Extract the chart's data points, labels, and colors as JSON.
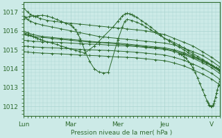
{
  "bg_color": "#cceae7",
  "plot_bg_color": "#cceae7",
  "line_color": "#2d6a2d",
  "grid_color": "#aad4d0",
  "tick_color": "#2d6a2d",
  "xlabel": "Pression niveau de la mer( hPa )",
  "ylim": [
    1011.5,
    1017.5
  ],
  "yticks": [
    1012,
    1013,
    1014,
    1015,
    1016,
    1017
  ],
  "xlim": [
    0,
    4.167
  ],
  "xtick_positions": [
    0.0,
    1.0,
    2.0,
    3.0,
    4.0
  ],
  "xtick_labels": [
    "Lun",
    "Mar",
    "Mer",
    "Jeu",
    "V"
  ],
  "linewidth": 0.7,
  "marker": "+",
  "markersize": 2.5,
  "markeredgewidth": 0.7,
  "series": [
    {
      "x": [
        0.0,
        0.08,
        0.15,
        0.25,
        0.35,
        0.5,
        0.65,
        0.8,
        1.0,
        1.2,
        1.4,
        1.6,
        1.8,
        2.0,
        2.2,
        2.4,
        2.6,
        2.8,
        3.0,
        3.2,
        3.4,
        3.6,
        3.8,
        4.0,
        4.167
      ],
      "y": [
        1017.2,
        1017.0,
        1016.85,
        1016.75,
        1016.65,
        1016.55,
        1016.5,
        1016.45,
        1016.4,
        1016.35,
        1016.3,
        1016.25,
        1016.2,
        1016.15,
        1016.1,
        1016.05,
        1016.0,
        1015.9,
        1015.8,
        1015.6,
        1015.4,
        1015.2,
        1014.9,
        1014.6,
        1014.3
      ]
    },
    {
      "x": [
        0.0,
        0.08,
        0.15,
        0.25,
        0.4,
        0.6,
        0.8,
        1.0,
        1.2,
        1.4,
        1.6,
        1.8,
        2.0,
        2.2,
        2.4,
        2.6,
        2.8,
        3.0,
        3.2,
        3.4,
        3.6,
        3.8,
        4.0,
        4.167
      ],
      "y": [
        1016.8,
        1016.6,
        1016.5,
        1016.4,
        1016.3,
        1016.2,
        1016.1,
        1016.0,
        1015.9,
        1015.8,
        1015.7,
        1015.65,
        1015.6,
        1015.55,
        1015.5,
        1015.45,
        1015.4,
        1015.35,
        1015.25,
        1015.1,
        1014.9,
        1014.7,
        1014.4,
        1014.1
      ]
    },
    {
      "x": [
        0.0,
        0.08,
        0.2,
        0.4,
        0.6,
        0.8,
        1.0,
        1.2,
        1.4,
        1.6,
        1.8,
        2.0,
        2.2,
        2.4,
        2.6,
        2.8,
        3.0,
        3.2,
        3.4,
        3.6,
        3.8,
        4.0,
        4.167
      ],
      "y": [
        1016.0,
        1015.9,
        1015.8,
        1015.7,
        1015.65,
        1015.6,
        1015.55,
        1015.5,
        1015.45,
        1015.4,
        1015.38,
        1015.35,
        1015.3,
        1015.25,
        1015.2,
        1015.15,
        1015.1,
        1015.0,
        1014.85,
        1014.65,
        1014.45,
        1014.2,
        1013.9
      ]
    },
    {
      "x": [
        0.0,
        0.08,
        0.2,
        0.4,
        0.6,
        0.8,
        1.0,
        1.2,
        1.4,
        1.6,
        1.8,
        2.0,
        2.2,
        2.4,
        2.6,
        2.8,
        3.0,
        3.2,
        3.4,
        3.6,
        3.8,
        4.0,
        4.167
      ],
      "y": [
        1015.8,
        1015.75,
        1015.7,
        1015.65,
        1015.6,
        1015.55,
        1015.5,
        1015.45,
        1015.4,
        1015.38,
        1015.35,
        1015.3,
        1015.25,
        1015.2,
        1015.15,
        1015.1,
        1015.05,
        1014.95,
        1014.8,
        1014.6,
        1014.4,
        1014.15,
        1013.85
      ]
    },
    {
      "x": [
        0.0,
        0.08,
        0.2,
        0.4,
        0.6,
        0.8,
        1.0,
        1.2,
        1.4,
        1.6,
        1.8,
        2.0,
        2.2,
        2.4,
        2.6,
        2.8,
        3.0,
        3.2,
        3.4,
        3.6,
        3.8,
        4.0,
        4.167
      ],
      "y": [
        1015.5,
        1015.48,
        1015.45,
        1015.42,
        1015.4,
        1015.38,
        1015.35,
        1015.32,
        1015.3,
        1015.28,
        1015.25,
        1015.22,
        1015.2,
        1015.17,
        1015.12,
        1015.07,
        1015.02,
        1014.9,
        1014.75,
        1014.55,
        1014.32,
        1014.05,
        1013.75
      ]
    },
    {
      "x": [
        0.0,
        0.08,
        0.2,
        0.4,
        0.6,
        0.8,
        1.0,
        1.2,
        1.4,
        1.6,
        1.8,
        2.0,
        2.2,
        2.4,
        2.6,
        2.8,
        3.0,
        3.2,
        3.4,
        3.6,
        3.8,
        4.0,
        4.167
      ],
      "y": [
        1015.2,
        1015.18,
        1015.15,
        1015.12,
        1015.1,
        1015.08,
        1015.05,
        1015.02,
        1015.0,
        1014.98,
        1014.96,
        1014.93,
        1014.9,
        1014.87,
        1014.82,
        1014.77,
        1014.72,
        1014.6,
        1014.45,
        1014.25,
        1014.02,
        1013.75,
        1013.45
      ]
    },
    {
      "x": [
        0.0,
        0.08,
        0.2,
        0.4,
        0.6,
        0.8,
        1.0,
        1.2,
        1.4,
        1.6,
        1.8,
        2.0,
        2.2,
        2.4,
        2.6,
        2.8,
        3.0,
        3.2,
        3.4,
        3.6,
        3.8,
        4.0,
        4.167
      ],
      "y": [
        1014.9,
        1014.88,
        1014.85,
        1014.82,
        1014.8,
        1014.78,
        1014.75,
        1014.72,
        1014.7,
        1014.68,
        1014.65,
        1014.62,
        1014.6,
        1014.57,
        1014.52,
        1014.47,
        1014.42,
        1014.3,
        1014.15,
        1013.95,
        1013.72,
        1013.45,
        1013.15
      ]
    },
    {
      "x": [
        0.0,
        0.05,
        0.12,
        0.2,
        0.3,
        0.4,
        0.5,
        0.6,
        0.7,
        0.8,
        0.9,
        1.0,
        1.05,
        1.1,
        1.15,
        1.2,
        1.25,
        1.3,
        1.4,
        1.5,
        1.6,
        1.7,
        1.8,
        2.0,
        2.1,
        2.15,
        2.2,
        2.3,
        2.4,
        2.5,
        2.6,
        2.7,
        2.8,
        2.9,
        3.0,
        3.1,
        3.2,
        3.3,
        3.4,
        3.5,
        3.6,
        3.7,
        3.8,
        3.9,
        4.0,
        4.1,
        4.167
      ],
      "y": [
        1016.6,
        1016.7,
        1016.75,
        1016.78,
        1016.8,
        1016.82,
        1016.78,
        1016.7,
        1016.6,
        1016.5,
        1016.4,
        1016.3,
        1016.2,
        1016.05,
        1015.85,
        1015.6,
        1015.3,
        1014.95,
        1014.4,
        1014.0,
        1013.82,
        1013.78,
        1013.8,
        1015.5,
        1016.2,
        1016.5,
        1016.6,
        1016.55,
        1016.45,
        1016.35,
        1016.2,
        1016.05,
        1015.9,
        1015.75,
        1015.6,
        1015.5,
        1015.38,
        1015.25,
        1015.1,
        1014.95,
        1014.8,
        1014.65,
        1014.5,
        1014.35,
        1014.2,
        1014.05,
        1013.9
      ]
    },
    {
      "x": [
        0.0,
        0.05,
        0.1,
        0.15,
        0.2,
        0.25,
        0.3,
        0.35,
        0.4,
        0.5,
        0.6,
        0.7,
        0.8,
        0.9,
        1.0,
        1.1,
        1.2,
        1.3,
        1.5,
        1.7,
        1.9,
        2.0,
        2.05,
        2.1,
        2.15,
        2.2,
        2.25,
        2.3,
        2.35,
        2.4,
        2.5,
        2.6,
        2.7,
        2.8,
        2.9,
        3.0,
        3.1,
        3.2,
        3.3,
        3.4,
        3.5,
        3.6,
        3.7,
        3.8,
        3.9,
        4.0,
        4.05,
        4.1,
        4.15,
        4.167
      ],
      "y": [
        1015.9,
        1015.85,
        1015.8,
        1015.75,
        1015.7,
        1015.65,
        1015.6,
        1015.55,
        1015.5,
        1015.42,
        1015.35,
        1015.28,
        1015.2,
        1015.12,
        1015.05,
        1014.97,
        1014.9,
        1014.82,
        1015.2,
        1015.7,
        1016.2,
        1016.5,
        1016.65,
        1016.78,
        1016.88,
        1016.92,
        1016.9,
        1016.85,
        1016.8,
        1016.72,
        1016.55,
        1016.38,
        1016.2,
        1016.0,
        1015.8,
        1015.6,
        1015.45,
        1015.3,
        1015.15,
        1015.0,
        1014.85,
        1014.7,
        1014.55,
        1014.4,
        1014.28,
        1014.15,
        1014.1,
        1014.05,
        1014.0,
        1013.95
      ]
    },
    {
      "x": [
        3.3,
        3.35,
        3.4,
        3.45,
        3.5,
        3.55,
        3.6,
        3.65,
        3.7,
        3.75,
        3.8,
        3.85,
        3.9,
        3.92,
        3.94,
        3.96,
        3.98,
        4.0,
        4.02,
        4.04,
        4.06,
        4.08,
        4.1,
        4.12,
        4.14,
        4.167
      ],
      "y": [
        1014.8,
        1014.75,
        1014.65,
        1014.55,
        1014.4,
        1014.25,
        1014.05,
        1013.8,
        1013.5,
        1013.2,
        1012.9,
        1012.6,
        1012.3,
        1012.2,
        1012.1,
        1012.05,
        1012.02,
        1012.0,
        1012.05,
        1012.15,
        1012.3,
        1012.5,
        1012.7,
        1012.9,
        1013.1,
        1013.35
      ]
    }
  ]
}
